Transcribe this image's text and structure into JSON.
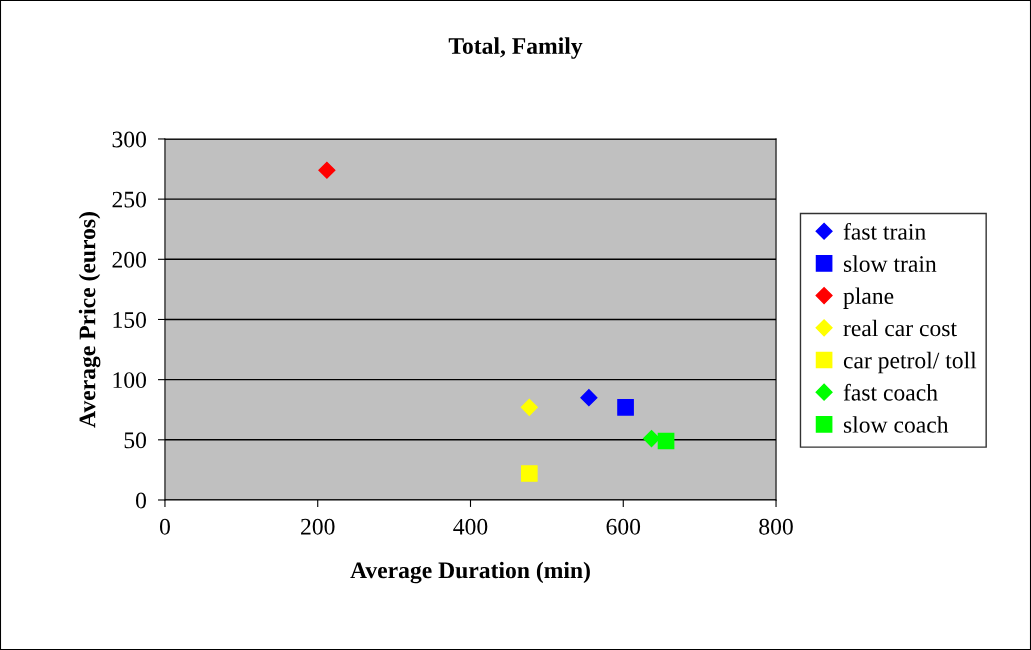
{
  "chart_data": {
    "type": "scatter",
    "title": "Total, Family",
    "xlabel": "Average Duration (min)",
    "ylabel": "Average Price (euros)",
    "xlim": [
      0,
      800
    ],
    "xticks": [
      0,
      200,
      400,
      600,
      800
    ],
    "ylim": [
      0,
      300
    ],
    "yticks": [
      0,
      50,
      100,
      150,
      200,
      250,
      300
    ],
    "grid": "y",
    "legend": "right",
    "series": [
      {
        "name": "fast train",
        "color": "#0000ff",
        "marker": "diamond",
        "x": [
          555
        ],
        "values": [
          85
        ]
      },
      {
        "name": "slow train",
        "color": "#0000ff",
        "marker": "square",
        "x": [
          603
        ],
        "values": [
          77
        ]
      },
      {
        "name": "plane",
        "color": "#ff0000",
        "marker": "diamond",
        "x": [
          212
        ],
        "values": [
          274
        ]
      },
      {
        "name": "real car cost",
        "color": "#ffff00",
        "marker": "diamond",
        "x": [
          477
        ],
        "values": [
          77
        ]
      },
      {
        "name": "car petrol/ toll",
        "color": "#ffff00",
        "marker": "square",
        "x": [
          477
        ],
        "values": [
          22
        ]
      },
      {
        "name": "fast coach",
        "color": "#00ff00",
        "marker": "diamond",
        "x": [
          637
        ],
        "values": [
          51
        ]
      },
      {
        "name": "slow coach",
        "color": "#00ff00",
        "marker": "square",
        "x": [
          656
        ],
        "values": [
          49
        ]
      }
    ]
  }
}
